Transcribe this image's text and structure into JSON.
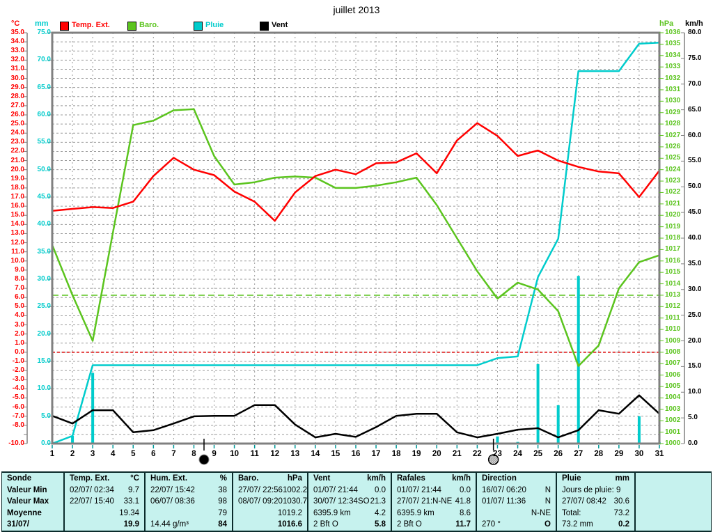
{
  "title": "juillet 2013",
  "legend": [
    {
      "label": "Temp. Ext.",
      "color": "#FF0000"
    },
    {
      "label": "Baro.",
      "color": "#5BC41E"
    },
    {
      "label": "Pluie",
      "color": "#00CCCC"
    },
    {
      "label": "Vent",
      "color": "#000000"
    }
  ],
  "axis_units": {
    "temp": "°C",
    "rain": "mm",
    "baro": "hPa",
    "wind": "km/h"
  },
  "colors": {
    "grid": "#9b9b9b",
    "frame": "#808080",
    "x_tick": "#009999",
    "table_bg": "#C6F2EE",
    "freeze_line": "#DD0000",
    "std_pressure_line": "#5BC41E"
  },
  "chart_data": {
    "type": "line",
    "title": "juillet 2013",
    "days": [
      1,
      2,
      3,
      4,
      5,
      6,
      7,
      8,
      9,
      10,
      11,
      12,
      13,
      14,
      15,
      16,
      17,
      18,
      19,
      20,
      21,
      22,
      23,
      24,
      25,
      26,
      27,
      28,
      29,
      30,
      31
    ],
    "axes": {
      "temp": {
        "label": "°C",
        "min": -10,
        "max": 35,
        "step": 1,
        "color": "#FF0000",
        "skip_labels": [
          -9
        ]
      },
      "rain": {
        "label": "mm",
        "min": 0,
        "max": 75,
        "step": 5,
        "color": "#00CCCC",
        "skip_labels": []
      },
      "baro": {
        "label": "hPa",
        "min": 1000,
        "max": 1036,
        "step": 1,
        "color": "#5BC41E",
        "skip_labels": []
      },
      "wind": {
        "label": "km/h",
        "min": 0,
        "max": 80,
        "step": 5,
        "color": "#000000",
        "skip_labels": []
      }
    },
    "series": [
      {
        "name": "Temp. Ext.",
        "axis": "temp",
        "color": "#FF0000",
        "values": [
          15.5,
          15.7,
          15.9,
          15.8,
          16.5,
          19.3,
          21.3,
          20.0,
          19.4,
          17.6,
          16.5,
          14.4,
          17.5,
          19.3,
          20.0,
          19.5,
          20.7,
          20.8,
          21.8,
          19.6,
          23.2,
          25.1,
          23.7,
          21.5,
          22.1,
          21.0,
          20.3,
          19.8,
          19.6,
          17.0,
          19.9
        ]
      },
      {
        "name": "Baro.",
        "axis": "baro",
        "color": "#5BC41E",
        "values": [
          1017.4,
          1013.0,
          1009.0,
          1018.5,
          1027.9,
          1028.3,
          1029.2,
          1029.3,
          1025.2,
          1022.7,
          1022.9,
          1023.3,
          1023.4,
          1023.3,
          1022.4,
          1022.4,
          1022.6,
          1022.9,
          1023.3,
          1020.9,
          1018.0,
          1015.1,
          1012.7,
          1014.1,
          1013.5,
          1011.6,
          1006.8,
          1008.6,
          1013.6,
          1015.9,
          1016.5
        ]
      },
      {
        "name": "Pluie (cumul)",
        "axis": "rain",
        "color": "#00CCCC",
        "values": [
          0,
          1.4,
          14.3,
          14.3,
          14.3,
          14.3,
          14.3,
          14.3,
          14.3,
          14.3,
          14.3,
          14.3,
          14.3,
          14.3,
          14.3,
          14.3,
          14.3,
          14.3,
          14.3,
          14.3,
          14.3,
          14.3,
          15.6,
          15.9,
          30.4,
          37.4,
          68.0,
          68.0,
          68.0,
          73.0,
          73.2
        ]
      },
      {
        "name": "Vent",
        "axis": "wind",
        "color": "#000000",
        "values": [
          5.4,
          3.9,
          6.5,
          6.5,
          2.2,
          2.6,
          3.9,
          5.3,
          5.4,
          5.4,
          7.5,
          7.5,
          3.7,
          1.2,
          1.9,
          1.3,
          3.2,
          5.4,
          5.8,
          5.8,
          2.2,
          1.2,
          1.9,
          2.7,
          3.0,
          1.2,
          2.6,
          6.5,
          5.8,
          9.4,
          5.8
        ]
      }
    ],
    "rain_bars": {
      "days": [
        2,
        3,
        23,
        24,
        25,
        26,
        27,
        30,
        31
      ],
      "values": [
        1.4,
        12.9,
        1.3,
        0.3,
        14.5,
        7.0,
        30.6,
        5.0,
        0.2
      ]
    },
    "reference_lines": [
      {
        "axis": "temp",
        "value": 0,
        "color": "#DD0000",
        "dash": "4,3"
      },
      {
        "axis": "baro",
        "value": 1013,
        "color": "#5BC41E",
        "dash": "9,5"
      }
    ],
    "moon_markers": [
      {
        "day": 8.5,
        "phase": "full"
      },
      {
        "day": 22.8,
        "phase": "new"
      }
    ],
    "legend_position": "top",
    "grid": true
  },
  "table": {
    "row_labels": [
      "Sonde",
      "Valeur Min",
      "Valeur Max",
      "Moyenne",
      "31/07/"
    ],
    "columns": [
      {
        "name": "Temp. Ext.",
        "unit": "°C",
        "rows": [
          {
            "left": "02/07/ 02:34",
            "right": "9.7"
          },
          {
            "left": "22/07/ 15:40",
            "right": "33.1"
          },
          {
            "left": "",
            "right": "19.34"
          },
          {
            "left": "",
            "right": "19.9",
            "bold": true
          }
        ]
      },
      {
        "name": "Hum. Ext.",
        "unit": "%",
        "rows": [
          {
            "left": "22/07/ 15:42",
            "right": "38"
          },
          {
            "left": "06/07/ 08:36",
            "right": "98"
          },
          {
            "left": "",
            "right": "79"
          },
          {
            "left": "14.44 g/m³",
            "right": "84",
            "bold": true
          }
        ]
      },
      {
        "name": "Baro.",
        "unit": "hPa",
        "rows": [
          {
            "left": "27/07/ 22:56",
            "right": "1002.2"
          },
          {
            "left": "08/07/ 09:20",
            "right": "1030.7"
          },
          {
            "left": "",
            "right": "1019.2"
          },
          {
            "left": "",
            "right": "1016.6",
            "bold": true
          }
        ]
      },
      {
        "name": "Vent",
        "unit": "km/h",
        "rows": [
          {
            "left": "01/07/ 21:44",
            "right": "0.0"
          },
          {
            "left": "30/07/ 12:34SO",
            "right": "21.3"
          },
          {
            "left": "6395.9 km",
            "right": "4.2"
          },
          {
            "left": "2 Bft O",
            "right": "5.8",
            "bold": true
          }
        ]
      },
      {
        "name": "Rafales",
        "unit": "km/h",
        "rows": [
          {
            "left": "01/07/ 21:44",
            "right": "0.0"
          },
          {
            "left": "27/07/ 21:N-NE",
            "right": "41.8"
          },
          {
            "left": "6395.9 km",
            "right": "8.6"
          },
          {
            "left": "2 Bft O",
            "right": "11.7",
            "bold": true
          }
        ]
      },
      {
        "name": "Direction",
        "unit": "",
        "rows": [
          {
            "left": "16/07/ 06:20",
            "right": "N"
          },
          {
            "left": "01/07/ 11:36",
            "right": "N"
          },
          {
            "left": "",
            "right": "N-NE"
          },
          {
            "left": "270 °",
            "right": "O",
            "bold": true
          }
        ]
      },
      {
        "name": "Pluie",
        "unit": "mm",
        "rows": [
          {
            "left": "Jours de pluie: 9",
            "right": ""
          },
          {
            "left": "27/07/ 08:42",
            "right": "30.6"
          },
          {
            "left": "Total:",
            "right": "73.2"
          },
          {
            "left": "73.2 mm",
            "right": "0.2",
            "bold": true
          }
        ]
      }
    ]
  }
}
